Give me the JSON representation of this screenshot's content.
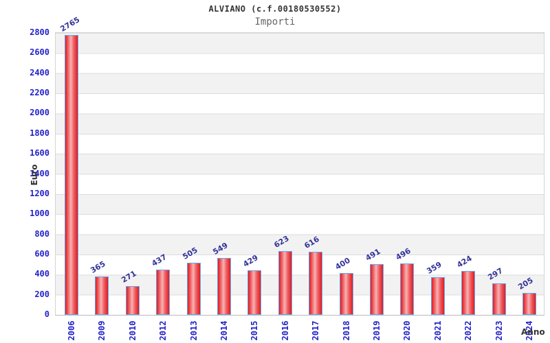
{
  "header": {
    "title": "ALVIANO (c.f.00180530552)",
    "subtitle": "Importi"
  },
  "chart_data": {
    "type": "bar",
    "title": "ALVIANO (c.f.00180530552)",
    "subtitle": "Importi",
    "xlabel": "Anno",
    "ylabel": "Euro",
    "categories": [
      "2006",
      "2009",
      "2010",
      "2012",
      "2013",
      "2014",
      "2015",
      "2016",
      "2017",
      "2018",
      "2019",
      "2020",
      "2021",
      "2022",
      "2023",
      "2024"
    ],
    "values": [
      2765,
      365,
      271,
      437,
      505,
      549,
      429,
      623,
      616,
      400,
      491,
      496,
      359,
      424,
      297,
      205
    ],
    "ylim": [
      0,
      2800
    ],
    "ytick_step": 200,
    "grid": true,
    "legend_position": "none",
    "colors": {
      "bar_edge": "#e21b1f",
      "bar_center": "#f7b3b3",
      "bar_border": "#64a8f0",
      "axis_tick_label": "#2222cc",
      "value_label": "#333399",
      "title": "#333333",
      "subtitle": "#666666",
      "band_stripe": "#f2f2f2",
      "gridline": "#dcdcdc"
    }
  }
}
